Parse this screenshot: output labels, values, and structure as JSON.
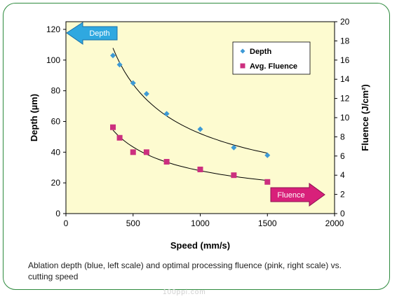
{
  "chart_data": {
    "type": "scatter",
    "caption": "Ablation depth (blue, left scale) and optimal processing fluence (pink, right scale) vs. cutting speed",
    "xlabel": "Speed (mm/s)",
    "ylabel_left": "Depth (µm)",
    "ylabel_right": "Fluence (J/cm²)",
    "xlim": [
      0,
      2000
    ],
    "ylim_left": [
      0,
      125
    ],
    "ylim_right": [
      0,
      20
    ],
    "x_ticks": [
      0,
      500,
      1000,
      1500,
      2000
    ],
    "y_left_ticks": [
      0,
      20,
      40,
      60,
      80,
      100,
      120
    ],
    "y_right_ticks": [
      0,
      2,
      4,
      6,
      8,
      10,
      12,
      14,
      16,
      18,
      20
    ],
    "legend_placement": "top-right",
    "background_color": "#fdfbd0",
    "arrows": [
      {
        "label": "Depth",
        "direction": "left",
        "color": "#2fa8e0"
      },
      {
        "label": "Fluence",
        "direction": "right",
        "color": "#d8207a"
      }
    ],
    "series": [
      {
        "name": "Depth",
        "axis": "left",
        "marker": "diamond",
        "color": "#3d9ad6",
        "x": [
          350,
          400,
          500,
          600,
          750,
          1000,
          1250,
          1500
        ],
        "y": [
          103,
          97,
          85,
          78,
          65,
          55,
          43,
          38
        ]
      },
      {
        "name": "Avg. Fluence",
        "axis": "right",
        "marker": "square",
        "color": "#cc2f7f",
        "x": [
          350,
          400,
          500,
          600,
          750,
          1000,
          1250,
          1500
        ],
        "y": [
          9.0,
          7.9,
          6.4,
          6.4,
          5.4,
          4.6,
          4.0,
          3.3
        ]
      }
    ]
  },
  "watermark": "100ppi.com"
}
